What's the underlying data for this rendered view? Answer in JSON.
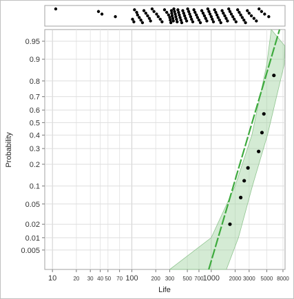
{
  "chart_data": {
    "type": "scatter",
    "xlabel": "Life",
    "ylabel": "Probability",
    "x_scale": "log",
    "y_scale": "normal-probability",
    "xlim": [
      8,
      8500
    ],
    "ylim": [
      0.0015,
      0.97
    ],
    "x_ticks": [
      {
        "value": 10,
        "label": "10",
        "major": true
      },
      {
        "value": 20,
        "label": "20",
        "major": false
      },
      {
        "value": 30,
        "label": "30",
        "major": false
      },
      {
        "value": 40,
        "label": "40",
        "major": false
      },
      {
        "value": 50,
        "label": "50",
        "major": false
      },
      {
        "value": 70,
        "label": "70",
        "major": false
      },
      {
        "value": 100,
        "label": "100",
        "major": true
      },
      {
        "value": 200,
        "label": "200",
        "major": false
      },
      {
        "value": 300,
        "label": "300",
        "major": false
      },
      {
        "value": 500,
        "label": "500",
        "major": false
      },
      {
        "value": 700,
        "label": "700",
        "major": false
      },
      {
        "value": 1000,
        "label": "1000",
        "major": true
      },
      {
        "value": 2000,
        "label": "2000",
        "major": false
      },
      {
        "value": 3000,
        "label": "3000",
        "major": false
      },
      {
        "value": 5000,
        "label": "5000",
        "major": false
      },
      {
        "value": 8000,
        "label": "8000",
        "major": false
      }
    ],
    "y_ticks": [
      "0.95",
      "0.9",
      "0.8",
      "0.7",
      "0.6",
      "0.5",
      "0.4",
      "0.3",
      "0.2",
      "0.1",
      "0.05",
      "0.02",
      "0.01",
      "0.005"
    ],
    "points": [
      {
        "x": 1720,
        "y": 0.02
      },
      {
        "x": 2350,
        "y": 0.065
      },
      {
        "x": 2600,
        "y": 0.12
      },
      {
        "x": 2900,
        "y": 0.18
      },
      {
        "x": 3950,
        "y": 0.28
      },
      {
        "x": 4350,
        "y": 0.42
      },
      {
        "x": 4600,
        "y": 0.57
      },
      {
        "x": 6150,
        "y": 0.83
      }
    ],
    "fit_line": {
      "color": "#3daa3d",
      "points": [
        {
          "x": 930,
          "y": 0.0015
        },
        {
          "x": 7250,
          "y": 0.97
        }
      ]
    },
    "confidence_band": {
      "color": "#9fd29f",
      "upper": [
        {
          "x": 300,
          "y": 0.0015
        },
        {
          "x": 1000,
          "y": 0.01
        },
        {
          "x": 2000,
          "y": 0.1
        },
        {
          "x": 3250,
          "y": 0.4
        },
        {
          "x": 5000,
          "y": 0.88
        },
        {
          "x": 5700,
          "y": 0.97
        }
      ],
      "lower": [
        {
          "x": 1550,
          "y": 0.0015
        },
        {
          "x": 2200,
          "y": 0.01
        },
        {
          "x": 3300,
          "y": 0.1
        },
        {
          "x": 5100,
          "y": 0.4
        },
        {
          "x": 8300,
          "y": 0.88
        },
        {
          "x": 8400,
          "y": 0.94
        }
      ]
    },
    "marginal": {
      "type": "jitter-strip",
      "x": [
        11,
        38,
        42,
        62,
        102,
        106,
        108,
        115,
        118,
        124,
        130,
        136,
        142,
        150,
        158,
        166,
        172,
        180,
        190,
        205,
        215,
        228,
        240,
        258,
        275,
        290,
        300,
        305,
        310,
        315,
        318,
        322,
        328,
        333,
        338,
        345,
        352,
        358,
        365,
        372,
        380,
        388,
        396,
        405,
        415,
        425,
        438,
        450,
        462,
        475,
        490,
        505,
        520,
        535,
        550,
        565,
        585,
        605,
        625,
        650,
        672,
        700,
        730,
        760,
        790,
        820,
        850,
        880,
        905,
        935,
        965,
        1000,
        1030,
        1065,
        1100,
        1140,
        1180,
        1220,
        1270,
        1320,
        1370,
        1420,
        1480,
        1540,
        1600,
        1660,
        1720,
        1790,
        1870,
        1950,
        2050,
        2150,
        2250,
        2350,
        2460,
        2580,
        2700,
        2850,
        3000,
        3200,
        3450,
        3700,
        4000,
        4300,
        4700,
        5300
      ]
    }
  }
}
